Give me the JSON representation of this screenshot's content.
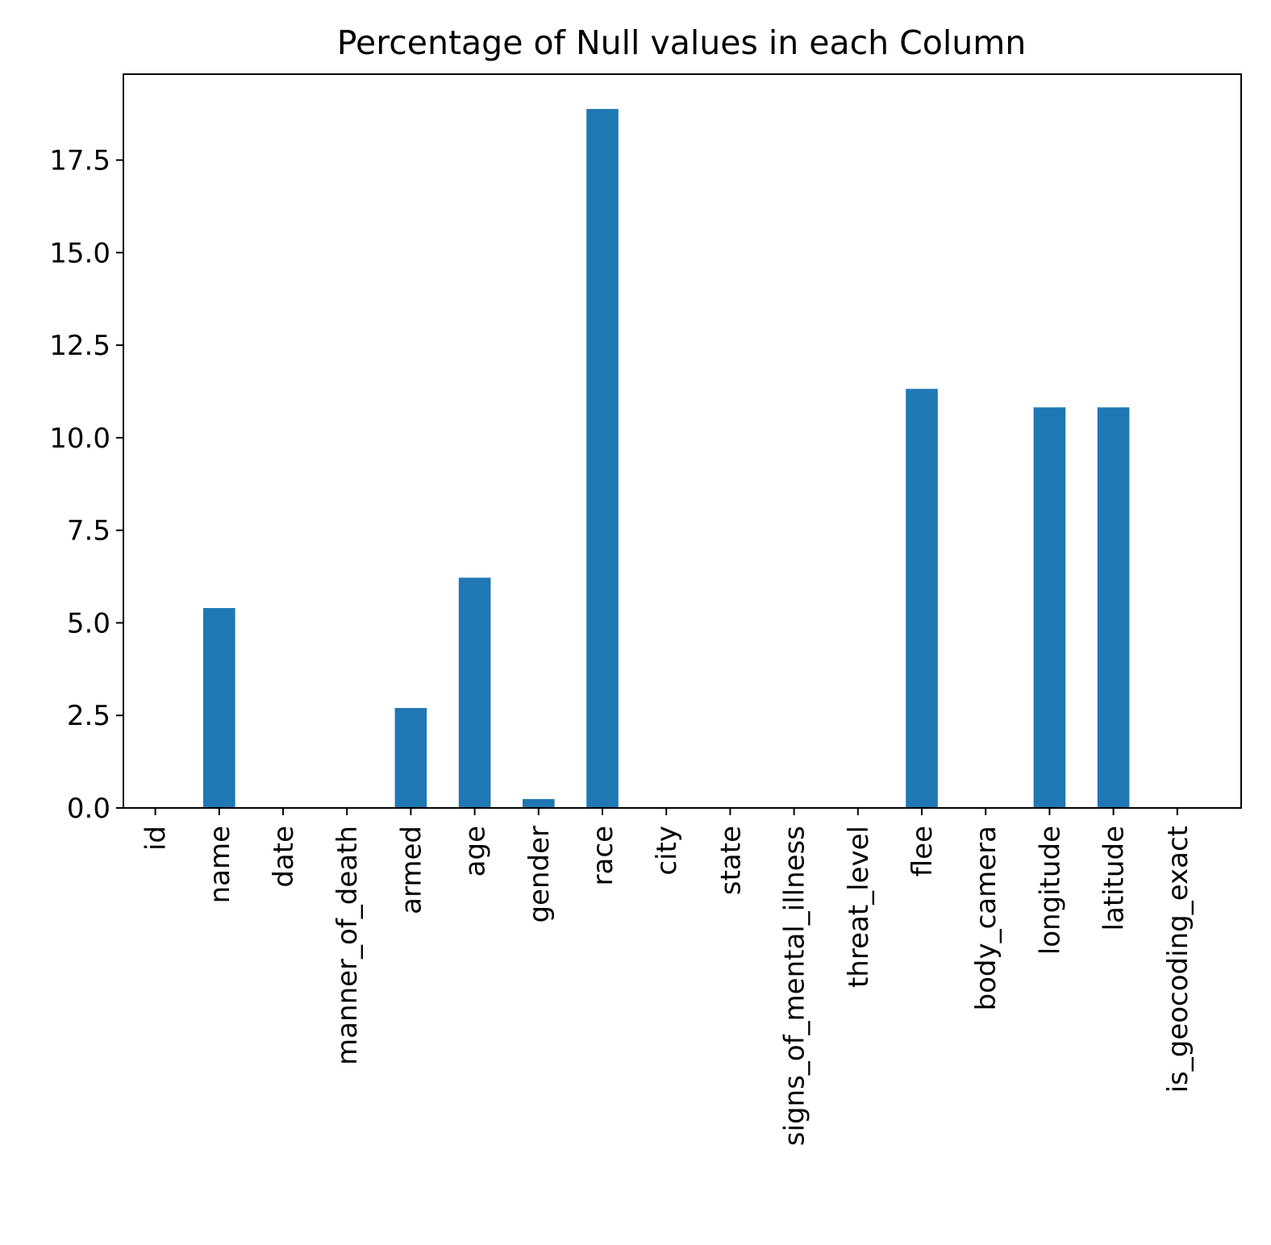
{
  "chart_data": {
    "type": "bar",
    "title": "Percentage of Null values in each Column",
    "xlabel": "",
    "ylabel": "",
    "categories": [
      "id",
      "name",
      "date",
      "manner_of_death",
      "armed",
      "age",
      "gender",
      "race",
      "city",
      "state",
      "signs_of_mental_illness",
      "threat_level",
      "flee",
      "body_camera",
      "longitude",
      "latitude",
      "is_geocoding_exact"
    ],
    "values": [
      0,
      5.4,
      0,
      0,
      2.7,
      6.22,
      0.24,
      18.88,
      0,
      0,
      0,
      0,
      11.32,
      0,
      10.82,
      10.82,
      0
    ],
    "ylim": [
      0,
      19.82
    ],
    "yticks": [
      0.0,
      2.5,
      5.0,
      7.5,
      10.0,
      12.5,
      15.0,
      17.5
    ],
    "ytick_labels": [
      "0.0",
      "2.5",
      "5.0",
      "7.5",
      "10.0",
      "12.5",
      "15.0",
      "17.5"
    ],
    "bar_color": "#1f77b4",
    "grid": false,
    "legend": "none"
  }
}
